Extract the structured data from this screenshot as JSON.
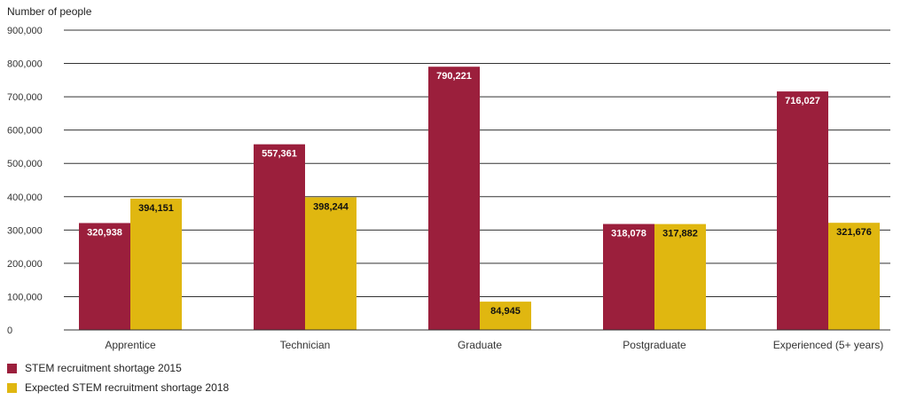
{
  "chart_data": {
    "type": "bar",
    "title": "",
    "ylabel": "Number of people",
    "xlabel": "",
    "ylim": [
      0,
      900000
    ],
    "yticks": [
      0,
      100000,
      200000,
      300000,
      400000,
      500000,
      600000,
      700000,
      800000,
      900000
    ],
    "ytick_labels": [
      "0",
      "100,000",
      "200,000",
      "300,000",
      "400,000",
      "500,000",
      "600,000",
      "700,000",
      "800,000",
      "900,000"
    ],
    "grid": true,
    "legend_position": "bottom-left",
    "categories": [
      "Apprentice",
      "Technician",
      "Graduate",
      "Postgraduate",
      "Experienced (5+ years)"
    ],
    "series": [
      {
        "name": "STEM recruitment shortage 2015",
        "color": "#9b1f3c",
        "values": [
          320938,
          557361,
          790221,
          318078,
          716027
        ],
        "labels": [
          "320,938",
          "557,361",
          "790,221",
          "318,078",
          "716,027"
        ]
      },
      {
        "name": "Expected STEM recruitment shortage 2018",
        "color": "#e0b710",
        "values": [
          394151,
          398244,
          84945,
          317882,
          321676
        ],
        "labels": [
          "394,151",
          "398,244",
          "84,945",
          "317,882",
          "321,676"
        ]
      }
    ]
  }
}
